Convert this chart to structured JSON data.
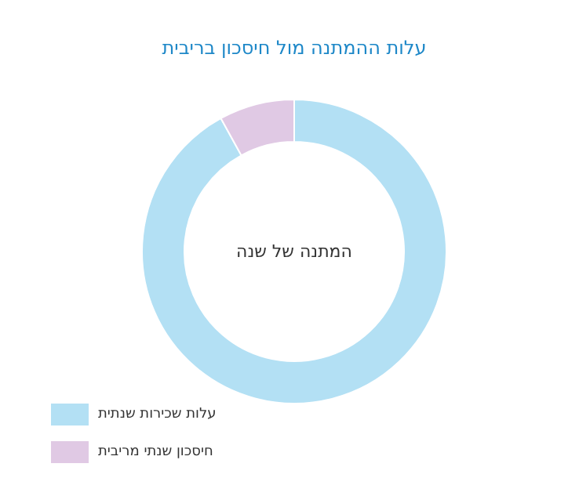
{
  "chart_data": {
    "type": "donut",
    "title": "עלות ההמתנה מול חיסכון בריבית",
    "categories": [
      "עלות שכירות שנתית",
      "חיסכון שנתי מריבית"
    ],
    "values": [
      92,
      8
    ],
    "colors": [
      "#b3e0f4",
      "#e0c9e4"
    ],
    "annotations": [
      "המתנה של שנה"
    ],
    "legend": "bottom left"
  }
}
